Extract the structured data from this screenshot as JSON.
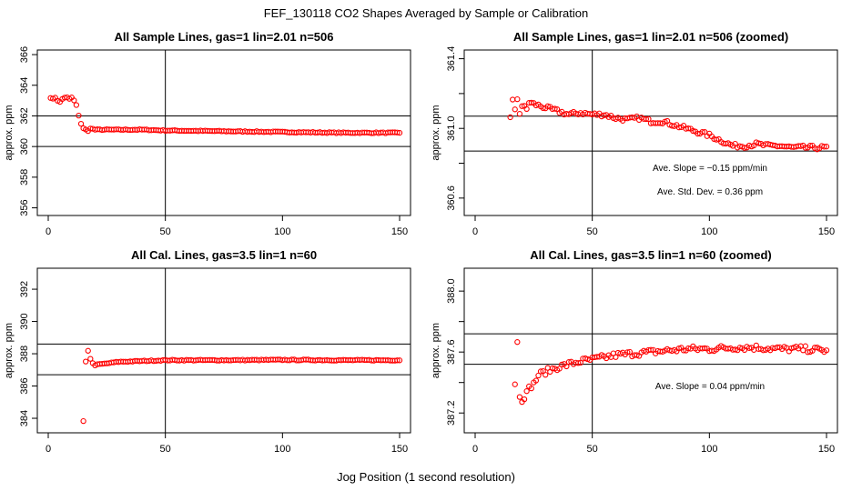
{
  "figure": {
    "title": "FEF_130118  CO2 Shapes Averaged by Sample or Calibration",
    "xlabel": "Jog Position (1 second resolution)"
  },
  "colors": {
    "points": "#ff0000",
    "lines": "#000000",
    "background": "#ffffff"
  },
  "chart_data": [
    {
      "type": "scatter",
      "title": "All Sample Lines, gas=1 lin=2.01 n=506",
      "ylabel": "approx. ppm",
      "xlim": [
        0,
        150
      ],
      "ylim": [
        355.5,
        366.3
      ],
      "xticks": [
        0,
        50,
        100,
        150
      ],
      "yticks": [
        356,
        358,
        360,
        362,
        364,
        366
      ],
      "vline": 50,
      "hlines": [
        360,
        362
      ],
      "grid": false,
      "legend": "none",
      "profile": "sample",
      "y_points": [
        [
          1,
          363.2
        ],
        [
          2,
          363.1
        ],
        [
          3,
          363.2
        ],
        [
          4,
          363.0
        ],
        [
          5,
          362.9
        ],
        [
          6,
          363.1
        ],
        [
          7,
          363.2
        ],
        [
          8,
          363.2
        ],
        [
          9,
          363.1
        ],
        [
          10,
          363.2
        ],
        [
          11,
          363.0
        ],
        [
          12,
          362.7
        ],
        [
          13,
          362.0
        ],
        [
          14,
          361.5
        ],
        [
          15,
          361.2
        ],
        [
          16,
          361.1
        ],
        [
          17,
          361.0
        ],
        [
          18,
          361.2
        ],
        [
          20,
          361.1
        ],
        [
          25,
          361.1
        ],
        [
          30,
          361.1
        ],
        [
          40,
          361.1
        ],
        [
          50,
          361.05
        ],
        [
          75,
          361.0
        ],
        [
          100,
          360.95
        ],
        [
          125,
          360.9
        ],
        [
          150,
          360.9
        ]
      ],
      "annotations": []
    },
    {
      "type": "scatter",
      "title": "All Sample Lines, gas=1 lin=2.01 n=506 (zoomed)",
      "ylabel": "approx. ppm",
      "xlim": [
        0,
        150
      ],
      "ylim": [
        360.5,
        361.45
      ],
      "xticks": [
        0,
        50,
        100,
        150
      ],
      "yticks": [
        360.6,
        360.8,
        361.0,
        361.2,
        361.4
      ],
      "ytick_labels": [
        "360.6",
        "",
        "361.0",
        "",
        "361.4"
      ],
      "vline": 50,
      "hlines": [
        360.87,
        361.07
      ],
      "grid": false,
      "legend": "none",
      "profile": "sample_zoom",
      "y_points": [
        [
          15,
          361.07
        ],
        [
          16,
          361.16
        ],
        [
          17,
          361.1
        ],
        [
          18,
          361.17
        ],
        [
          19,
          361.09
        ],
        [
          20,
          361.13
        ],
        [
          21,
          361.12
        ],
        [
          22,
          361.11
        ],
        [
          23,
          361.15
        ],
        [
          25,
          361.14
        ],
        [
          30,
          361.12
        ],
        [
          35,
          361.1
        ],
        [
          40,
          361.08
        ],
        [
          45,
          361.09
        ],
        [
          50,
          361.08
        ],
        [
          55,
          361.08
        ],
        [
          60,
          361.06
        ],
        [
          65,
          361.05
        ],
        [
          70,
          361.06
        ],
        [
          75,
          361.04
        ],
        [
          80,
          361.04
        ],
        [
          85,
          361.02
        ],
        [
          90,
          361.0
        ],
        [
          95,
          360.98
        ],
        [
          100,
          360.96
        ],
        [
          105,
          360.93
        ],
        [
          110,
          360.9
        ],
        [
          115,
          360.9
        ],
        [
          120,
          360.91
        ],
        [
          125,
          360.9
        ],
        [
          130,
          360.9
        ],
        [
          135,
          360.89
        ],
        [
          140,
          360.89
        ],
        [
          145,
          360.89
        ],
        [
          150,
          360.89
        ]
      ],
      "annotations": [
        "Ave. Slope =  −0.15  ppm/min",
        "Ave. Std. Dev. =  0.36  ppm"
      ]
    },
    {
      "type": "scatter",
      "title": "All Cal. Lines, gas=3.5 lin=1 n=60",
      "ylabel": "approx. ppm",
      "xlim": [
        0,
        150
      ],
      "ylim": [
        383.1,
        393.3
      ],
      "xticks": [
        0,
        50,
        100,
        150
      ],
      "yticks": [
        384,
        386,
        388,
        390,
        392
      ],
      "vline": 50,
      "hlines": [
        386.7,
        388.6
      ],
      "grid": false,
      "legend": "none",
      "profile": "cal",
      "y_points": [
        [
          15,
          383.8
        ],
        [
          16,
          387.5
        ],
        [
          17,
          388.2
        ],
        [
          18,
          387.7
        ],
        [
          19,
          387.4
        ],
        [
          20,
          387.3
        ],
        [
          22,
          387.35
        ],
        [
          25,
          387.4
        ],
        [
          30,
          387.5
        ],
        [
          40,
          387.55
        ],
        [
          50,
          387.6
        ],
        [
          75,
          387.6
        ],
        [
          100,
          387.62
        ],
        [
          125,
          387.6
        ],
        [
          150,
          387.6
        ]
      ],
      "annotations": []
    },
    {
      "type": "scatter",
      "title": "All Cal. Lines, gas=3.5 lin=1 n=60 (zoomed)",
      "ylabel": "approx. ppm",
      "xlim": [
        0,
        150
      ],
      "ylim": [
        387.07,
        388.15
      ],
      "xticks": [
        0,
        50,
        100,
        150
      ],
      "yticks": [
        387.2,
        387.4,
        387.6,
        387.8,
        388.0
      ],
      "ytick_labels": [
        "387.2",
        "",
        "387.6",
        "",
        "388.0"
      ],
      "vline": 50,
      "hlines": [
        387.52,
        387.72
      ],
      "grid": false,
      "legend": "none",
      "profile": "cal_zoom",
      "y_points": [
        [
          17,
          387.4
        ],
        [
          18,
          387.66
        ],
        [
          19,
          387.32
        ],
        [
          20,
          387.29
        ],
        [
          21,
          387.31
        ],
        [
          22,
          387.33
        ],
        [
          23,
          387.36
        ],
        [
          24,
          387.38
        ],
        [
          25,
          387.39
        ],
        [
          27,
          387.45
        ],
        [
          30,
          387.47
        ],
        [
          35,
          387.5
        ],
        [
          40,
          387.52
        ],
        [
          45,
          387.54
        ],
        [
          50,
          387.55
        ],
        [
          60,
          387.58
        ],
        [
          75,
          387.6
        ],
        [
          90,
          387.62
        ],
        [
          100,
          387.62
        ],
        [
          110,
          387.63
        ],
        [
          120,
          387.63
        ],
        [
          130,
          387.62
        ],
        [
          140,
          387.62
        ],
        [
          150,
          387.61
        ]
      ],
      "annotations": [
        "Ave. Slope =  0.04  ppm/min"
      ]
    }
  ]
}
